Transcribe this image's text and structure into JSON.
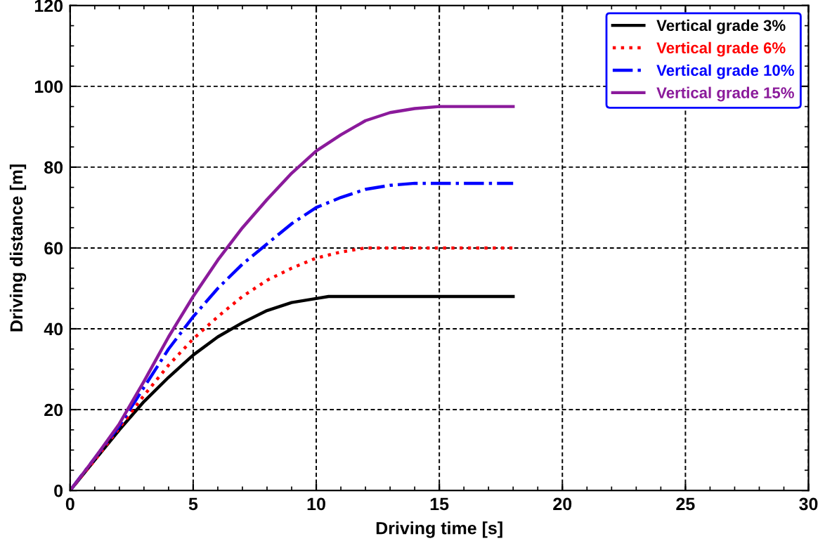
{
  "chart_data": {
    "type": "line",
    "xlabel": "Driving time [s]",
    "ylabel": "Driving distance [m]",
    "xlim": [
      0,
      30
    ],
    "xticks": [
      0,
      5,
      10,
      15,
      20,
      25,
      30
    ],
    "ylim": [
      0,
      120
    ],
    "yticks": [
      0,
      20,
      40,
      60,
      80,
      100,
      120
    ],
    "grid": true,
    "legend": "top right",
    "marker": "none",
    "series": [
      {
        "name": "Vertical grade 3%",
        "color": "#000000",
        "line_style": "solid",
        "x": [
          0,
          1,
          2,
          3,
          4,
          5,
          6,
          7,
          8,
          9,
          10,
          10.5,
          12,
          14,
          16,
          18
        ],
        "values": [
          0,
          7.5,
          15,
          22,
          28,
          33.5,
          38,
          41.5,
          44.5,
          46.5,
          47.5,
          48,
          48,
          48,
          48,
          48
        ]
      },
      {
        "name": "Vertical grade 6%",
        "color": "#ff0000",
        "line_style": "dotted",
        "x": [
          0,
          1,
          2,
          3,
          4,
          5,
          6,
          7,
          8,
          9,
          10,
          11,
          12,
          14,
          16,
          18
        ],
        "values": [
          0,
          7.5,
          15.5,
          23.5,
          31,
          37.5,
          43,
          48,
          52,
          55,
          57.5,
          59,
          60,
          60,
          60,
          60
        ]
      },
      {
        "name": "Vertical grade 10%",
        "color": "#0000ff",
        "line_style": "dashdot",
        "x": [
          0,
          1,
          2,
          3,
          4,
          5,
          6,
          7,
          8,
          9,
          10,
          11,
          12,
          13,
          14,
          16,
          18
        ],
        "values": [
          0,
          8,
          16,
          25.5,
          35,
          43,
          50,
          56,
          61,
          66,
          70,
          72.5,
          74.5,
          75.5,
          76,
          76,
          76
        ]
      },
      {
        "name": "Vertical grade 15%",
        "color": "#8b1a9b",
        "line_style": "solid",
        "x": [
          0,
          1,
          2,
          3,
          4,
          5,
          6,
          7,
          8,
          9,
          10,
          11,
          12,
          13,
          14,
          15,
          16,
          18
        ],
        "values": [
          0,
          8,
          16.5,
          27,
          38,
          48,
          57,
          65,
          72,
          78.5,
          84,
          88,
          91.5,
          93.5,
          94.5,
          95,
          95,
          95
        ]
      }
    ]
  }
}
